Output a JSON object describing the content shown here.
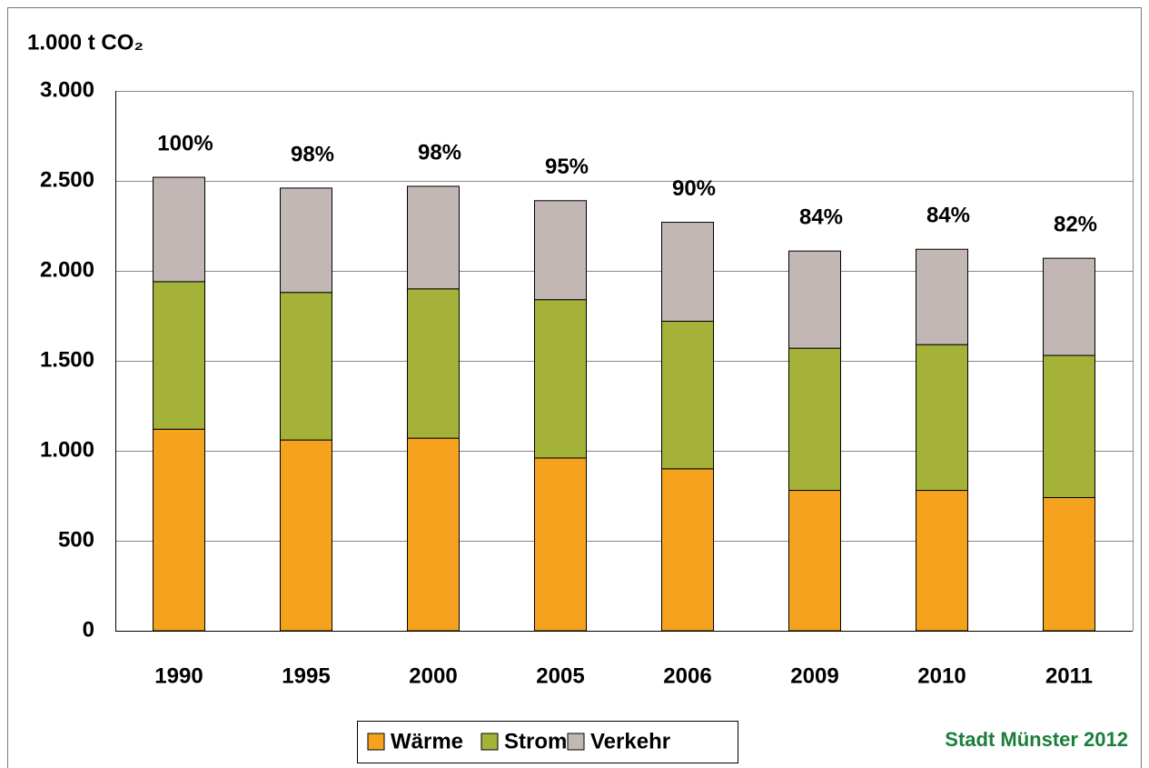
{
  "chart_data": {
    "type": "stacked_bar",
    "y_axis_title": "1.000 t CO₂",
    "source": "Stadt Münster 2012",
    "categories": [
      "1990",
      "1995",
      "2000",
      "2005",
      "2006",
      "2009",
      "2010",
      "2011"
    ],
    "annotations": [
      "100%",
      "98%",
      "98%",
      "95%",
      "90%",
      "84%",
      "84%",
      "82%"
    ],
    "series": [
      {
        "name": "Wärme",
        "color": "#f5a31f",
        "values": [
          1120,
          1060,
          1070,
          960,
          900,
          780,
          780,
          740
        ]
      },
      {
        "name": "Strom",
        "color": "#a4b23a",
        "values": [
          820,
          820,
          830,
          880,
          820,
          790,
          810,
          790
        ]
      },
      {
        "name": "Verkehr",
        "color": "#c2b7b4",
        "values": [
          580,
          580,
          570,
          550,
          550,
          540,
          530,
          540
        ]
      }
    ],
    "ylim": [
      0,
      3000
    ],
    "yticks": [
      0,
      500,
      {
        "value": 1000,
        "label": "1.000"
      },
      {
        "value": 1500,
        "label": "1.500"
      },
      {
        "value": 2000,
        "label": "2.000"
      },
      {
        "value": 2500,
        "label": "2.500"
      },
      {
        "value": 3000,
        "label": "3.000"
      }
    ],
    "grid": true
  }
}
